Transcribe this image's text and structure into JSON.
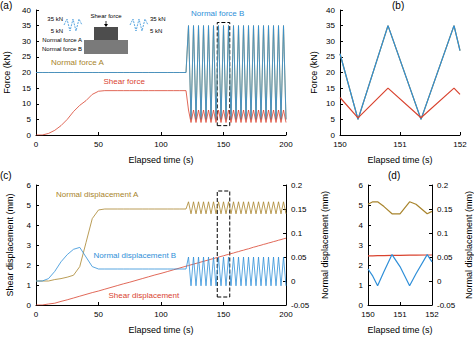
{
  "chart_data": [
    {
      "type": "line",
      "panel": "(a)",
      "x_label": "Elapsed time (s)",
      "y_label": "Force (kN)",
      "xlim": [
        0,
        200
      ],
      "xticks": [
        0,
        50,
        100,
        150,
        200
      ],
      "ylim": [
        0,
        40
      ],
      "yticks": [
        0,
        5,
        10,
        15,
        20,
        25,
        30,
        35,
        40
      ],
      "grid": false,
      "highlight": {
        "x": [
          145,
          155
        ],
        "y": [
          3,
          36
        ]
      },
      "inset": {
        "title": "Shear force",
        "levels": [
          "35 kN",
          "5 kN"
        ],
        "forces": [
          "Normal force A",
          "Normal force B"
        ]
      },
      "x": [
        0,
        5,
        10,
        15,
        20,
        25,
        30,
        35,
        40,
        45,
        50,
        55,
        60,
        65,
        70,
        75,
        80,
        85,
        90,
        95,
        100,
        105,
        110,
        115,
        120,
        122,
        124,
        126,
        128,
        130,
        132,
        134,
        136,
        138,
        140,
        142,
        144,
        146,
        148,
        150,
        152,
        154,
        156,
        158,
        160,
        162,
        164,
        166,
        168,
        170,
        172,
        174,
        176,
        178,
        180,
        182,
        184,
        186,
        188,
        190,
        192,
        194,
        196,
        198,
        200
      ],
      "series": [
        {
          "name": "Normal force A",
          "color": "#a8842c",
          "values": [
            20,
            20,
            20,
            20,
            20,
            20,
            20,
            20,
            20,
            20,
            20,
            20,
            20,
            20,
            20,
            20,
            20,
            20,
            20,
            20,
            20,
            20,
            20,
            20,
            20,
            35,
            5,
            35,
            5,
            35,
            5,
            35,
            5,
            35,
            5,
            35,
            5,
            35,
            5,
            35,
            5,
            35,
            5,
            35,
            5,
            35,
            5,
            35,
            5,
            35,
            5,
            35,
            5,
            35,
            5,
            35,
            5,
            35,
            5,
            35,
            5,
            35,
            5,
            35,
            5
          ]
        },
        {
          "name": "Normal force B",
          "color": "#2f8fd8",
          "values": [
            20,
            20,
            20,
            20,
            20,
            20,
            20,
            20,
            20,
            20,
            20,
            20,
            20,
            20,
            20,
            20,
            20,
            20,
            20,
            20,
            20,
            20,
            20,
            20,
            20,
            35,
            5,
            35,
            5,
            35,
            5,
            35,
            5,
            35,
            5,
            35,
            5,
            35,
            5,
            35,
            5,
            35,
            5,
            35,
            5,
            35,
            5,
            35,
            5,
            35,
            5,
            35,
            5,
            35,
            5,
            35,
            5,
            35,
            5,
            35,
            5,
            35,
            5,
            35,
            5
          ]
        },
        {
          "name": "Shear force",
          "color": "#d9432f",
          "values": [
            0,
            0,
            0.5,
            1.5,
            3,
            5,
            7.5,
            9.5,
            11,
            13,
            14,
            14.2,
            14.2,
            14.2,
            14.2,
            14.2,
            14.2,
            14.2,
            14.2,
            14.2,
            14.2,
            14.2,
            14.2,
            14.2,
            14.2,
            8,
            4,
            8,
            4,
            8,
            4,
            8,
            4,
            8,
            4,
            8,
            4,
            8,
            4,
            8,
            4,
            8,
            4,
            8,
            4,
            8,
            4,
            8,
            4,
            8,
            4,
            8,
            4,
            8,
            4,
            8,
            4,
            8,
            4,
            8,
            4,
            8,
            4,
            8,
            4
          ]
        }
      ]
    },
    {
      "type": "line",
      "panel": "(b)",
      "x_label": "Elapsed time (s)",
      "y_label": "Force (kN)",
      "xlim": [
        150,
        152
      ],
      "xticks": [
        150,
        151,
        152
      ],
      "ylim": [
        0,
        40
      ],
      "yticks": [
        0,
        5,
        10,
        15,
        20,
        25,
        30,
        35,
        40
      ],
      "grid": false,
      "x": [
        150,
        150.3,
        150.8,
        151.35,
        151.9,
        152
      ],
      "series": [
        {
          "color": "#a8842c",
          "values": [
            26,
            5,
            35,
            5,
            35,
            27
          ]
        },
        {
          "color": "#2f8fd8",
          "values": [
            26,
            5,
            35,
            5,
            35,
            27
          ]
        },
        {
          "color": "#d9432f",
          "values": [
            12,
            5.5,
            15,
            5.5,
            15,
            13
          ]
        }
      ]
    },
    {
      "type": "line",
      "panel": "(c)",
      "x_label": "Elapsed time (s)",
      "y_label": "Shear displacement (mm)",
      "y2_label": "Normal displacement (mm)",
      "xlim": [
        0,
        200
      ],
      "xticks": [
        0,
        50,
        100,
        150,
        200
      ],
      "ylim": [
        0,
        6
      ],
      "yticks": [
        0,
        1,
        2,
        3,
        4,
        5,
        6
      ],
      "y2lim": [
        -0.05,
        0.2
      ],
      "y2ticks": [
        -0.05,
        0,
        0.05,
        0.1,
        0.15,
        0.2
      ],
      "grid": false,
      "highlight": {
        "x": [
          145,
          155
        ],
        "y": [
          0.4,
          5.7
        ]
      },
      "x": [
        0,
        5,
        10,
        15,
        20,
        25,
        30,
        35,
        40,
        45,
        50,
        55,
        60,
        65,
        70,
        75,
        80,
        85,
        90,
        95,
        100,
        105,
        110,
        115,
        120,
        122,
        124,
        126,
        128,
        130,
        132,
        134,
        136,
        138,
        140,
        142,
        144,
        146,
        148,
        150,
        152,
        154,
        156,
        158,
        160,
        162,
        164,
        166,
        168,
        170,
        172,
        174,
        176,
        178,
        180,
        182,
        184,
        186,
        188,
        190,
        192,
        194,
        196,
        198,
        200
      ],
      "series": [
        {
          "name": "Shear displacement",
          "color": "#d9432f",
          "values": [
            0,
            0,
            0.05,
            0.09,
            0.18,
            0.26,
            0.35,
            0.44,
            0.53,
            0.62,
            0.7,
            0.79,
            0.88,
            0.97,
            1.06,
            1.14,
            1.23,
            1.32,
            1.41,
            1.5,
            1.58,
            1.67,
            1.76,
            1.85,
            1.94,
            1.97,
            2.01,
            2.04,
            2.08,
            2.11,
            2.15,
            2.18,
            2.22,
            2.25,
            2.29,
            2.32,
            2.36,
            2.39,
            2.43,
            2.46,
            2.5,
            2.53,
            2.57,
            2.6,
            2.64,
            2.67,
            2.71,
            2.74,
            2.78,
            2.81,
            2.85,
            2.89,
            2.92,
            2.96,
            2.99,
            3.03,
            3.06,
            3.1,
            3.13,
            3.17,
            3.2,
            3.24,
            3.27,
            3.31,
            3.34
          ]
        },
        {
          "name": "Normal displacement A",
          "color": "#a8842c",
          "axis": "y2",
          "values": [
            0,
            0,
            0,
            0.003,
            0.005,
            0.008,
            0.012,
            0.03,
            0.08,
            0.13,
            0.148,
            0.15,
            0.15,
            0.15,
            0.15,
            0.15,
            0.15,
            0.15,
            0.15,
            0.15,
            0.15,
            0.15,
            0.15,
            0.15,
            0.15,
            0.165,
            0.14,
            0.165,
            0.14,
            0.165,
            0.14,
            0.165,
            0.14,
            0.165,
            0.14,
            0.165,
            0.14,
            0.165,
            0.14,
            0.165,
            0.14,
            0.165,
            0.14,
            0.165,
            0.14,
            0.165,
            0.14,
            0.165,
            0.14,
            0.165,
            0.14,
            0.165,
            0.14,
            0.165,
            0.14,
            0.165,
            0.14,
            0.165,
            0.14,
            0.165,
            0.14,
            0.165,
            0.14,
            0.165,
            0.14
          ]
        },
        {
          "name": "Normal displacement B",
          "color": "#2f8fd8",
          "axis": "y2",
          "values": [
            0,
            0,
            0.005,
            0.02,
            0.04,
            0.055,
            0.066,
            0.07,
            0.05,
            0.03,
            0.025,
            0.025,
            0.025,
            0.025,
            0.025,
            0.025,
            0.025,
            0.025,
            0.025,
            0.025,
            0.025,
            0.025,
            0.025,
            0.025,
            0.025,
            0.05,
            -0.01,
            0.05,
            -0.01,
            0.05,
            -0.01,
            0.05,
            -0.01,
            0.05,
            -0.01,
            0.05,
            -0.01,
            0.05,
            -0.01,
            0.05,
            -0.01,
            0.05,
            -0.01,
            0.05,
            -0.01,
            0.05,
            -0.01,
            0.05,
            -0.01,
            0.05,
            -0.01,
            0.05,
            -0.01,
            0.05,
            -0.01,
            0.05,
            -0.01,
            0.05,
            -0.01,
            0.05,
            -0.01,
            0.05,
            -0.01,
            0.05,
            -0.01
          ]
        }
      ]
    },
    {
      "type": "line",
      "panel": "(d)",
      "x_label": "Elapsed time (s)",
      "y2_label": "Normal displacement (mm)",
      "xlim": [
        150,
        152
      ],
      "xticks": [
        150,
        151,
        152
      ],
      "ylim": [
        0,
        6
      ],
      "yticks": [
        0,
        1,
        2,
        3,
        4,
        5,
        6
      ],
      "y2lim": [
        -0.05,
        0.2
      ],
      "y2ticks": [
        -0.05,
        0,
        0.05,
        0.1,
        0.15,
        0.2
      ],
      "grid": false,
      "x": [
        150,
        150.15,
        150.3,
        150.5,
        150.75,
        151,
        151.3,
        151.5,
        151.85,
        152
      ],
      "series": [
        {
          "color": "#d9432f",
          "values": [
            2.46,
            2.46,
            2.47,
            2.47,
            2.48,
            2.48,
            2.49,
            2.49,
            2.5,
            2.5
          ]
        },
        {
          "color": "#a8842c",
          "axis": "y2",
          "values": [
            0.16,
            0.165,
            0.165,
            0.155,
            0.14,
            0.14,
            0.165,
            0.16,
            0.14,
            0.145
          ]
        },
        {
          "color": "#2f8fd8",
          "axis": "y2",
          "values": [
            0.025,
            0.01,
            -0.01,
            0.02,
            0.055,
            0.03,
            -0.01,
            0.015,
            0.055,
            0.04
          ]
        }
      ]
    }
  ]
}
